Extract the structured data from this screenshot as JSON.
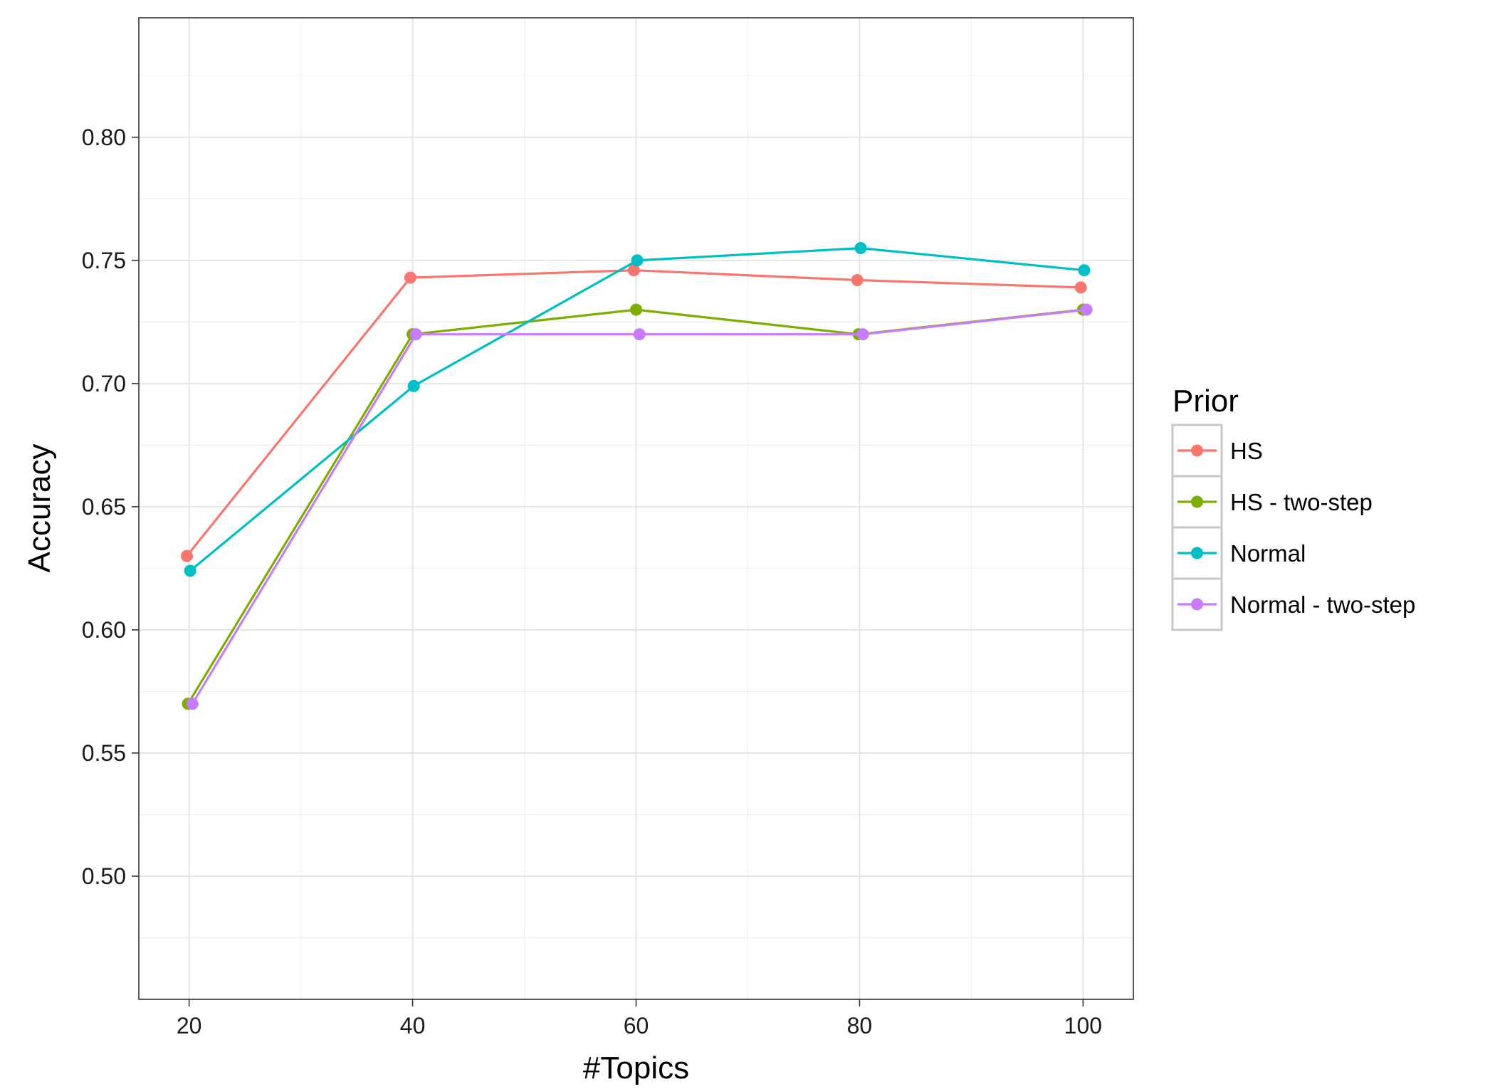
{
  "chart_data": {
    "type": "line",
    "title": "",
    "xlabel": "#Topics",
    "ylabel": "Accuracy",
    "x": [
      20,
      40,
      60,
      80,
      100
    ],
    "xticks": [
      20,
      40,
      60,
      80,
      100
    ],
    "xtick_labels": [
      "20",
      "40",
      "60",
      "80",
      "100"
    ],
    "yticks": [
      0.5,
      0.55,
      0.6,
      0.65,
      0.7,
      0.75,
      0.8
    ],
    "ytick_labels": [
      "0.50",
      "0.55",
      "0.60",
      "0.65",
      "0.70",
      "0.75",
      "0.80"
    ],
    "xlim": [
      15.5,
      104.5
    ],
    "ylim": [
      0.45,
      0.8485
    ],
    "grid": true,
    "legend_title": "Prior",
    "legend_position": "right",
    "series": [
      {
        "name": "HS",
        "color": "#F8766D",
        "x": [
          19.8,
          39.8,
          59.8,
          79.8,
          99.8
        ],
        "values": [
          0.63,
          0.743,
          0.746,
          0.742,
          0.739
        ]
      },
      {
        "name": "HS - two-step",
        "color": "#7CAE00",
        "x": [
          19.9,
          40.0,
          60.0,
          79.9,
          100.0
        ],
        "values": [
          0.57,
          0.72,
          0.73,
          0.72,
          0.73
        ]
      },
      {
        "name": "Normal",
        "color": "#00BFC4",
        "x": [
          20.1,
          40.1,
          60.1,
          80.1,
          100.1
        ],
        "values": [
          0.624,
          0.699,
          0.75,
          0.755,
          0.746
        ]
      },
      {
        "name": "Normal - two-step",
        "color": "#C77CFF",
        "x": [
          20.3,
          40.3,
          60.3,
          80.3,
          100.3
        ],
        "values": [
          0.57,
          0.72,
          0.72,
          0.72,
          0.73
        ]
      }
    ]
  }
}
